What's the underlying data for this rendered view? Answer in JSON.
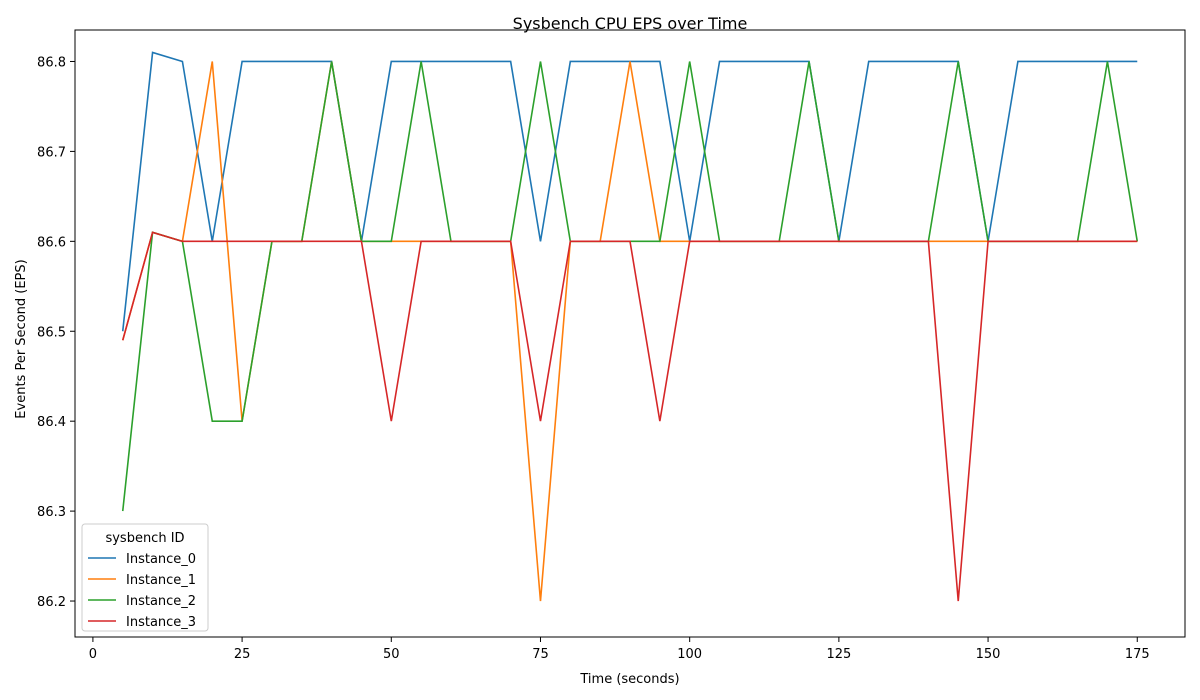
{
  "chart_data": {
    "type": "line",
    "title": "Sysbench CPU EPS over Time",
    "xlabel": "Time (seconds)",
    "ylabel": "Events Per Second (EPS)",
    "xlim": [
      -3,
      183
    ],
    "ylim": [
      86.16,
      86.835
    ],
    "xticks": [
      0,
      25,
      50,
      75,
      100,
      125,
      150,
      175
    ],
    "yticks": [
      86.2,
      86.3,
      86.4,
      86.5,
      86.6,
      86.7,
      86.8
    ],
    "x": [
      5,
      10,
      15,
      20,
      25,
      30,
      35,
      40,
      45,
      50,
      55,
      60,
      65,
      70,
      75,
      80,
      85,
      90,
      95,
      100,
      105,
      110,
      115,
      120,
      125,
      130,
      135,
      140,
      145,
      150,
      155,
      160,
      165,
      170,
      175
    ],
    "legend": {
      "title": "sysbench ID",
      "position": "lower-left"
    },
    "grid": false,
    "series": [
      {
        "name": "Instance_0",
        "color": "#1f77b4",
        "values": [
          86.5,
          86.81,
          86.8,
          86.6,
          86.8,
          86.8,
          86.8,
          86.8,
          86.6,
          86.8,
          86.8,
          86.8,
          86.8,
          86.8,
          86.6,
          86.8,
          86.8,
          86.8,
          86.8,
          86.6,
          86.8,
          86.8,
          86.8,
          86.8,
          86.6,
          86.8,
          86.8,
          86.8,
          86.8,
          86.6,
          86.8,
          86.8,
          86.8,
          86.8,
          86.8
        ]
      },
      {
        "name": "Instance_1",
        "color": "#ff7f0e",
        "values": [
          86.49,
          86.61,
          86.6,
          86.8,
          86.4,
          86.6,
          86.6,
          86.8,
          86.6,
          86.6,
          86.6,
          86.6,
          86.6,
          86.6,
          86.2,
          86.6,
          86.6,
          86.8,
          86.6,
          86.6,
          86.6,
          86.6,
          86.6,
          86.6,
          86.6,
          86.6,
          86.6,
          86.6,
          86.6,
          86.6,
          86.6,
          86.6,
          86.6,
          86.6,
          86.6
        ]
      },
      {
        "name": "Instance_2",
        "color": "#2ca02c",
        "values": [
          86.3,
          86.61,
          86.6,
          86.4,
          86.4,
          86.6,
          86.6,
          86.8,
          86.6,
          86.6,
          86.8,
          86.6,
          86.6,
          86.6,
          86.8,
          86.6,
          86.6,
          86.6,
          86.6,
          86.8,
          86.6,
          86.6,
          86.6,
          86.8,
          86.6,
          86.6,
          86.6,
          86.6,
          86.8,
          86.6,
          86.6,
          86.6,
          86.6,
          86.8,
          86.6
        ]
      },
      {
        "name": "Instance_3",
        "color": "#d62728",
        "values": [
          86.49,
          86.61,
          86.6,
          86.6,
          86.6,
          86.6,
          86.6,
          86.6,
          86.6,
          86.4,
          86.6,
          86.6,
          86.6,
          86.6,
          86.4,
          86.6,
          86.6,
          86.6,
          86.4,
          86.6,
          86.6,
          86.6,
          86.6,
          86.6,
          86.6,
          86.6,
          86.6,
          86.6,
          86.2,
          86.6,
          86.6,
          86.6,
          86.6,
          86.6,
          86.6
        ]
      }
    ]
  }
}
